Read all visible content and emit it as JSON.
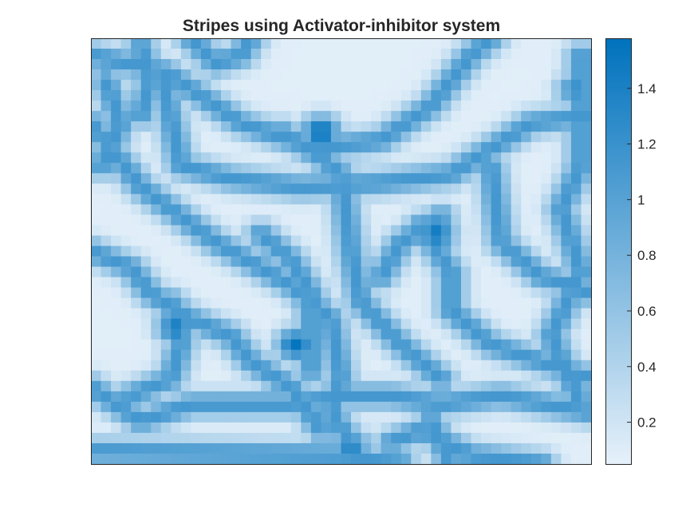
{
  "chart_data": {
    "type": "heatmap",
    "title": "Stripes using Activator-inhibitor system",
    "xlabel": "",
    "ylabel": "",
    "grid": false,
    "colormap": {
      "low": "#e6f1fa",
      "high": "#0072bd"
    },
    "clim": [
      0.05,
      1.58
    ],
    "colorbar": {
      "ticks": [
        0.2,
        0.4,
        0.6,
        0.8,
        1,
        1.2,
        1.4
      ],
      "tick_labels": [
        "0.2",
        "0.4",
        "0.6",
        "0.8",
        "1",
        "1.2",
        "1.4"
      ]
    },
    "grid_size": [
      50,
      41
    ],
    "pattern": "labyrinthine stripes"
  }
}
